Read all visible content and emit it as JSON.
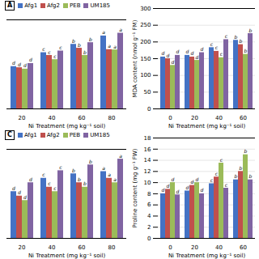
{
  "chart_data": [
    {
      "type": "bar",
      "title": "A",
      "categories": [
        "20",
        "40",
        "60",
        "80"
      ],
      "xlabel": "Ni Treatment (mg kg⁻¹ soil)",
      "ylim": [
        0,
        320
      ],
      "tick_labels": "x",
      "legend": "top",
      "series": [
        {
          "name": "Afg1",
          "color": "#4472C4",
          "values": [
            152,
            202,
            232,
            262
          ],
          "letters": [
            "d",
            "c",
            "b",
            "a"
          ]
        },
        {
          "name": "Afg2",
          "color": "#C0504D",
          "values": [
            148,
            192,
            218,
            213
          ],
          "letters": [
            "d",
            "c",
            "b",
            "a"
          ]
        },
        {
          "name": "PEB",
          "color": "#9BBB59",
          "values": [
            143,
            177,
            192,
            212
          ],
          "letters": [
            "d",
            "c",
            "b",
            "a"
          ]
        },
        {
          "name": "UM185",
          "color": "#8064A2",
          "values": [
            163,
            208,
            238,
            272
          ],
          "letters": [
            "d",
            "c",
            "b",
            "a"
          ]
        }
      ]
    },
    {
      "type": "bar",
      "categories": [
        "0",
        "20",
        "40",
        "60"
      ],
      "xlabel": "Ni Treatment (mg kg⁻¹ soil)",
      "ylabel": "MDA content (nmol g⁻¹ FM)",
      "ylim": [
        0,
        300
      ],
      "yticks": [
        0,
        50,
        100,
        150,
        200,
        250,
        300
      ],
      "grid": true,
      "series": [
        {
          "name": "Afg1",
          "color": "#4472C4",
          "values": [
            155,
            160,
            183,
            205
          ],
          "letters": [
            "d",
            "d",
            "c",
            "b"
          ]
        },
        {
          "name": "Afg2",
          "color": "#C0504D",
          "values": [
            150,
            155,
            172,
            192
          ],
          "letters": [
            "d",
            "d",
            "c",
            "b"
          ]
        },
        {
          "name": "PEB",
          "color": "#9BBB59",
          "values": [
            130,
            145,
            153,
            163
          ],
          "letters": [
            "d",
            "d",
            "c",
            "b"
          ]
        },
        {
          "name": "UM185",
          "color": "#8064A2",
          "values": [
            160,
            168,
            207,
            225
          ],
          "letters": [
            "d",
            "d",
            "c",
            "b"
          ]
        }
      ]
    },
    {
      "type": "bar",
      "title": "C",
      "categories": [
        "20",
        "40",
        "60",
        "80"
      ],
      "xlabel": "Ni Treatment (mg kg⁻¹ soil)",
      "ylim": [
        0,
        20
      ],
      "tick_labels": "x",
      "legend": "top",
      "series": [
        {
          "name": "Afg1",
          "color": "#4472C4",
          "values": [
            10.5,
            13.5,
            14.5,
            15.0
          ],
          "letters": [
            "d",
            "c",
            "b",
            "a"
          ]
        },
        {
          "name": "Afg2",
          "color": "#C0504D",
          "values": [
            9.5,
            11.5,
            12.5,
            13.5
          ],
          "letters": [
            "d",
            "c",
            "b",
            "a"
          ]
        },
        {
          "name": "PEB",
          "color": "#9BBB59",
          "values": [
            8.5,
            10.5,
            11.5,
            12.5
          ],
          "letters": [
            "d",
            "c",
            "b",
            "a"
          ]
        },
        {
          "name": "UM185",
          "color": "#8064A2",
          "values": [
            12.5,
            15.2,
            16.5,
            17.8
          ],
          "letters": [
            "d",
            "c",
            "b",
            "a"
          ]
        }
      ]
    },
    {
      "type": "bar",
      "categories": [
        "0",
        "20",
        "40",
        "60"
      ],
      "xlabel": "Ni Treatment (mg kg⁻¹ soil)",
      "ylabel": "Proline content (mg g⁻¹ FW)",
      "ylim": [
        0,
        18
      ],
      "yticks": [
        0,
        2,
        4,
        6,
        8,
        10,
        12,
        14,
        16,
        18
      ],
      "grid": true,
      "series": [
        {
          "name": "Afg1",
          "color": "#4472C4",
          "values": [
            8.0,
            8.5,
            9.8,
            10.5
          ],
          "letters": [
            "d",
            "d",
            "c",
            "b"
          ]
        },
        {
          "name": "Afg2",
          "color": "#C0504D",
          "values": [
            8.8,
            9.5,
            11.0,
            12.0
          ],
          "letters": [
            "d",
            "d",
            "c",
            "b"
          ]
        },
        {
          "name": "PEB",
          "color": "#9BBB59",
          "values": [
            10.0,
            10.0,
            13.5,
            15.0
          ],
          "letters": [
            "d",
            "d",
            "c",
            "b"
          ]
        },
        {
          "name": "UM185",
          "color": "#8064A2",
          "values": [
            7.8,
            8.0,
            9.0,
            10.5
          ],
          "letters": [
            "d",
            "d",
            "c",
            "b"
          ]
        }
      ]
    }
  ]
}
